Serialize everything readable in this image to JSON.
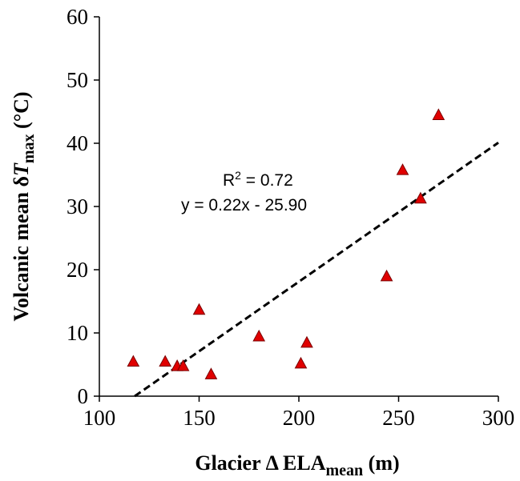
{
  "chart_data": {
    "type": "scatter",
    "x": [
      117,
      133,
      139,
      142,
      150,
      156,
      180,
      201,
      204,
      244,
      252,
      261,
      270
    ],
    "y": [
      5.5,
      5.5,
      4.8,
      4.8,
      13.7,
      3.5,
      9.5,
      5.2,
      8.5,
      19.0,
      35.8,
      31.3,
      44.5
    ],
    "series_color": "#e00000",
    "marker": "triangle",
    "xlim": [
      100,
      300
    ],
    "ylim": [
      0,
      60
    ],
    "xticks": [
      100,
      150,
      200,
      250,
      300
    ],
    "yticks": [
      0,
      10,
      20,
      30,
      40,
      50,
      60
    ],
    "xlabel": {
      "prefix": "Glacier Δ ELA",
      "sub": "mean",
      "suffix": " (m)"
    },
    "ylabel": {
      "prefix": "Volcanic mean δ",
      "italic": "T",
      "sub": "max",
      "suffix": " (°C)"
    },
    "trendline": {
      "slope": 0.22,
      "intercept": -25.9,
      "style": "dashed",
      "color": "#000000"
    },
    "annotations": {
      "r2_label": "R",
      "r2_sup": "2",
      "r2_value": " = 0.72",
      "equation": "y = 0.22x - 25.90"
    },
    "grid": false
  }
}
